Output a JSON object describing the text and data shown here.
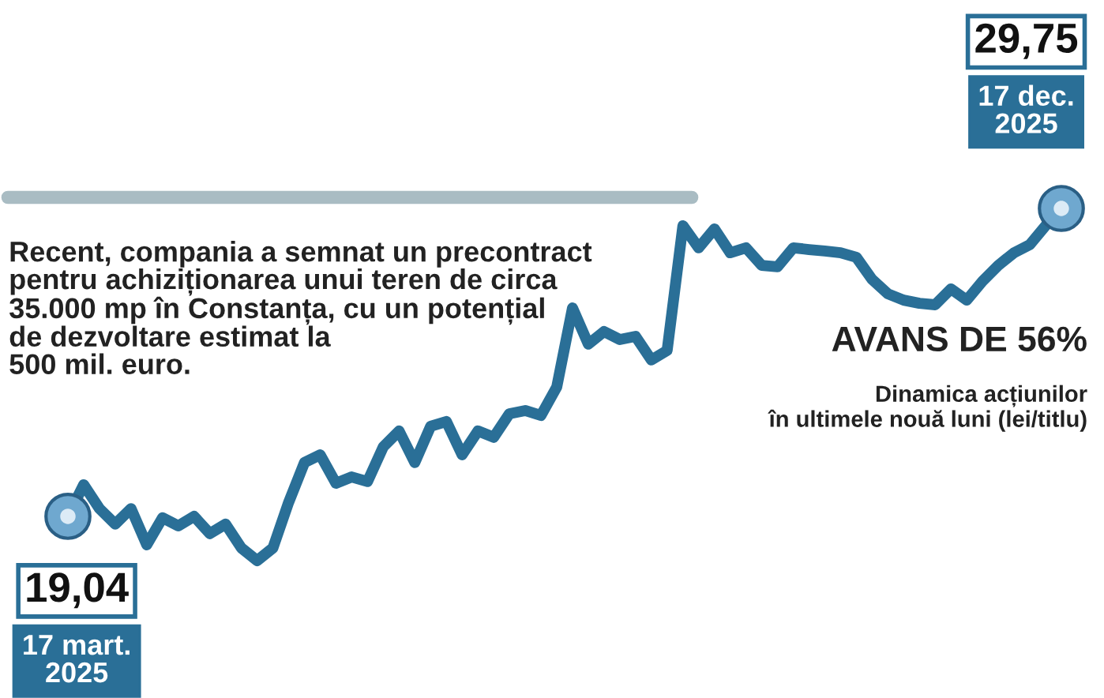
{
  "chart_data": {
    "type": "line",
    "title": "AVANS DE 56%",
    "subtitle": "Dinamica acțiunilor\nîn ultimele nouă luni (lei/titlu)",
    "annotations": [
      "Recent, compania a semnat un precontract\npentru achiziționarea unui teren de circa\n35.000 mp în Constanța, cu un potențial\nde dezvoltare estimat la\n500 mil. euro.",
      "17 mart.\n2025",
      "17 dec.\n2025"
    ],
    "categories": [
      null,
      null,
      null,
      null,
      null,
      null,
      null,
      null,
      null,
      null,
      null,
      null,
      null,
      null,
      null,
      null,
      null,
      null,
      null,
      null,
      null,
      null,
      null,
      null,
      null,
      null,
      null,
      null,
      null,
      null,
      null,
      null,
      null,
      null,
      null,
      null,
      null,
      null,
      null,
      null,
      null,
      null,
      null,
      null,
      null,
      null,
      null,
      null,
      null,
      null,
      null,
      null,
      null,
      null,
      null,
      null,
      null,
      null,
      null,
      null,
      null,
      null,
      null,
      null
    ],
    "series": [
      {
        "color": "#2a6f97",
        "values": [
          19.04,
          20.14,
          19.31,
          18.77,
          19.31,
          18.05,
          18.99,
          18.71,
          19.04,
          18.44,
          18.77,
          17.94,
          17.5,
          17.94,
          19.53,
          20.91,
          21.18,
          20.19,
          20.41,
          20.25,
          21.46,
          22.01,
          20.91,
          22.17,
          22.34,
          21.18,
          22.01,
          21.79,
          22.61,
          22.72,
          22.55,
          23.54,
          26.29,
          25.03,
          25.47,
          25.19,
          25.3,
          24.48,
          24.81,
          29.15,
          28.38,
          29.04,
          28.21,
          28.38,
          27.77,
          27.72,
          28.38,
          28.32,
          28.27,
          28.21,
          28.05,
          27.28,
          26.78,
          26.56,
          26.45,
          26.4,
          26.95,
          26.56,
          27.22,
          27.77,
          28.21,
          28.49,
          29.15,
          29.75
        ],
        "value_labels": [
          "19,04",
          null,
          null,
          null,
          null,
          null,
          null,
          null,
          null,
          null,
          null,
          null,
          null,
          null,
          null,
          null,
          null,
          null,
          null,
          null,
          null,
          null,
          null,
          null,
          null,
          null,
          null,
          null,
          null,
          null,
          null,
          null,
          null,
          null,
          null,
          null,
          null,
          null,
          null,
          null,
          null,
          null,
          null,
          null,
          null,
          null,
          null,
          null,
          null,
          null,
          null,
          null,
          null,
          null,
          null,
          null,
          null,
          null,
          null,
          null,
          null,
          null,
          null,
          "29,75"
        ]
      }
    ]
  }
}
